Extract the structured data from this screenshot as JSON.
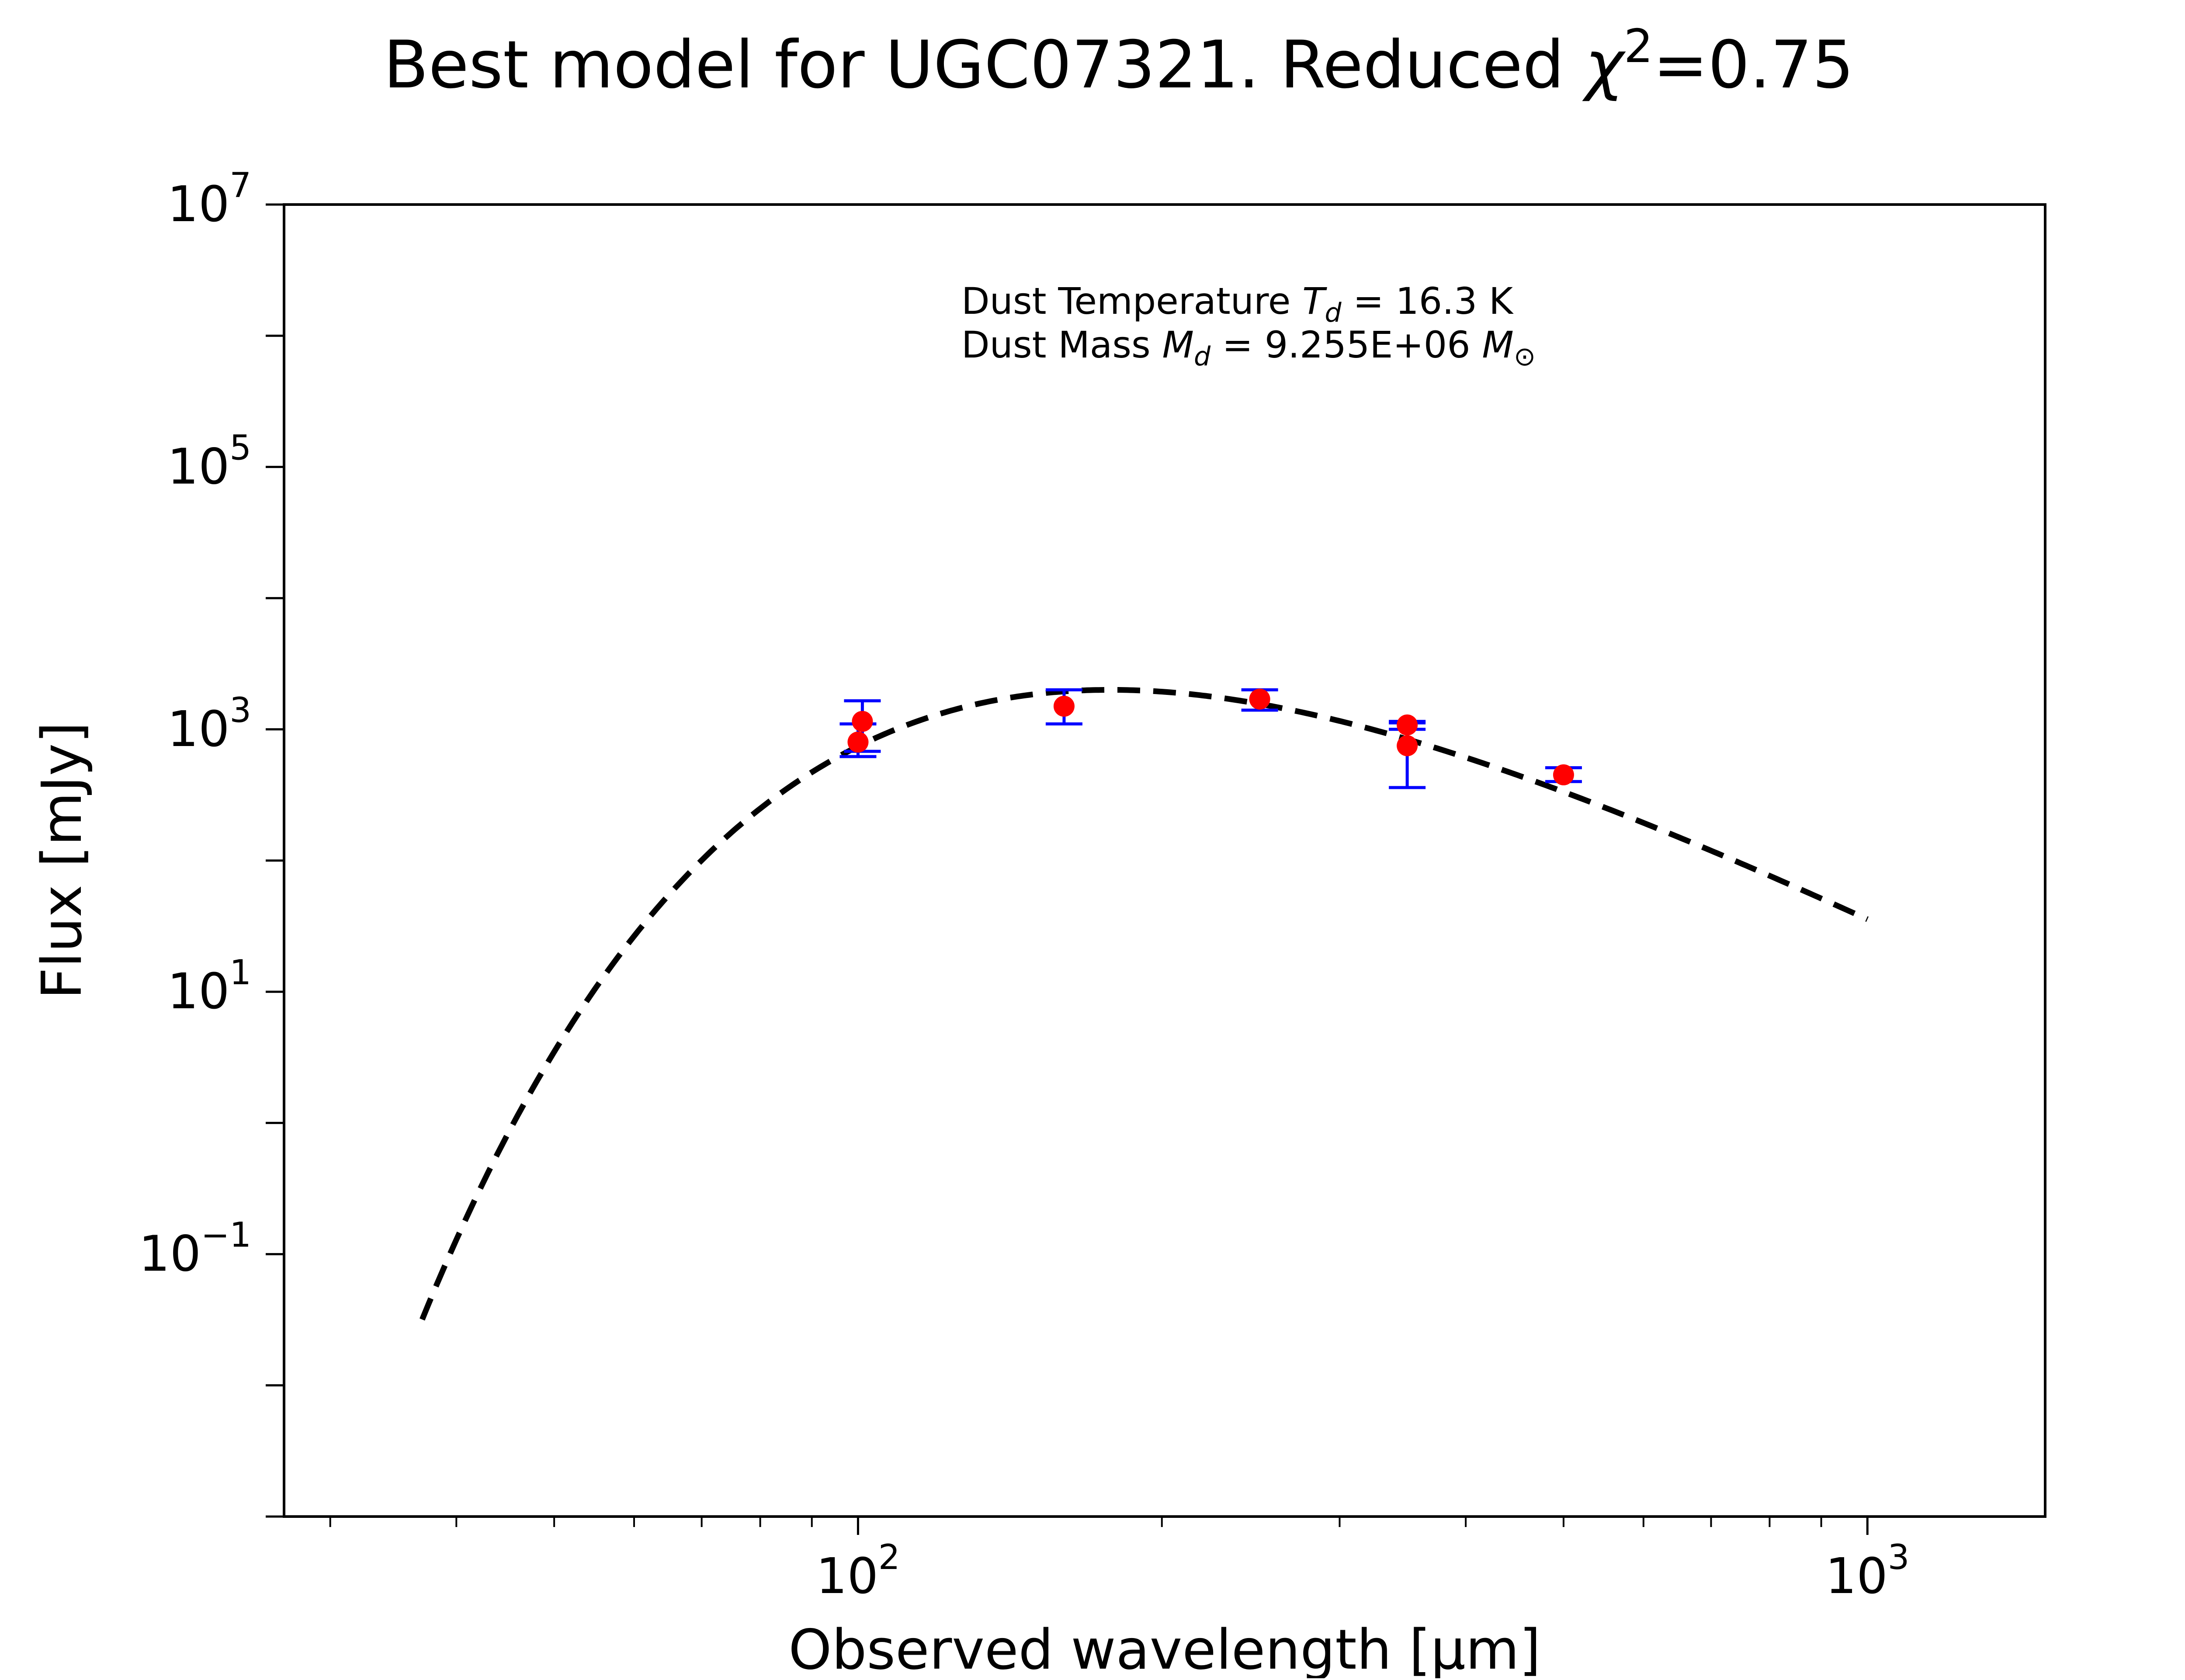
{
  "chart_data": {
    "type": "scatter",
    "title": {
      "prefix": "Best model for UGC07321. Reduced ",
      "symbol": "χ",
      "exponent": "2",
      "suffix": "=0.75"
    },
    "xlabel": "Observed wavelength [μm]",
    "ylabel": "Flux [mJy]",
    "x_scale": "log",
    "y_scale": "log",
    "xlim": [
      27,
      1500
    ],
    "ylim": [
      0.001,
      10000000
    ],
    "x_ticks": [
      {
        "value": 100,
        "base": "10",
        "exp": "2"
      },
      {
        "value": 1000,
        "base": "10",
        "exp": "3"
      }
    ],
    "y_ticks": [
      {
        "value": 0.1,
        "base": "10",
        "exp": "−1"
      },
      {
        "value": 10,
        "base": "10",
        "exp": "1"
      },
      {
        "value": 1000,
        "base": "10",
        "exp": "3"
      },
      {
        "value": 100000,
        "base": "10",
        "exp": "5"
      },
      {
        "value": 10000000,
        "base": "10",
        "exp": "7"
      }
    ],
    "annotation": {
      "line1": {
        "text": "Dust Temperature ",
        "sym": "T",
        "sub": "d",
        "rest": " = 16.3 K"
      },
      "line2": {
        "text": "Dust Mass ",
        "sym": "M",
        "sub": "d",
        "rest": " = 9.255E+06 ",
        "unit_sym": "M",
        "unit_sub": "⊙"
      }
    },
    "series": [
      {
        "type": "errorbar",
        "points": [
          {
            "x": 100,
            "y": 800,
            "err_low": 620,
            "err_high": 1100
          },
          {
            "x": 101,
            "y": 1150,
            "err_low": 680,
            "err_high": 1650
          },
          {
            "x": 160,
            "y": 1500,
            "err_low": 1100,
            "err_high": 2000
          },
          {
            "x": 250,
            "y": 1700,
            "err_low": 1400,
            "err_high": 2000
          },
          {
            "x": 350,
            "y": 1080,
            "err_low": 1000,
            "err_high": 1150
          },
          {
            "x": 350,
            "y": 750,
            "err_low": 360,
            "err_high": 1120
          },
          {
            "x": 500,
            "y": 450,
            "err_low": 400,
            "err_high": 510
          }
        ]
      },
      {
        "type": "line",
        "style": "dashed",
        "model": "modified blackbody",
        "x_range": [
          37,
          1000
        ]
      }
    ],
    "colors": {
      "points": "#ff0000",
      "errorbars": "#0000ff",
      "model": "#000000",
      "axes": "#000000",
      "background": "#ffffff"
    },
    "grid": false,
    "legend": "none"
  }
}
